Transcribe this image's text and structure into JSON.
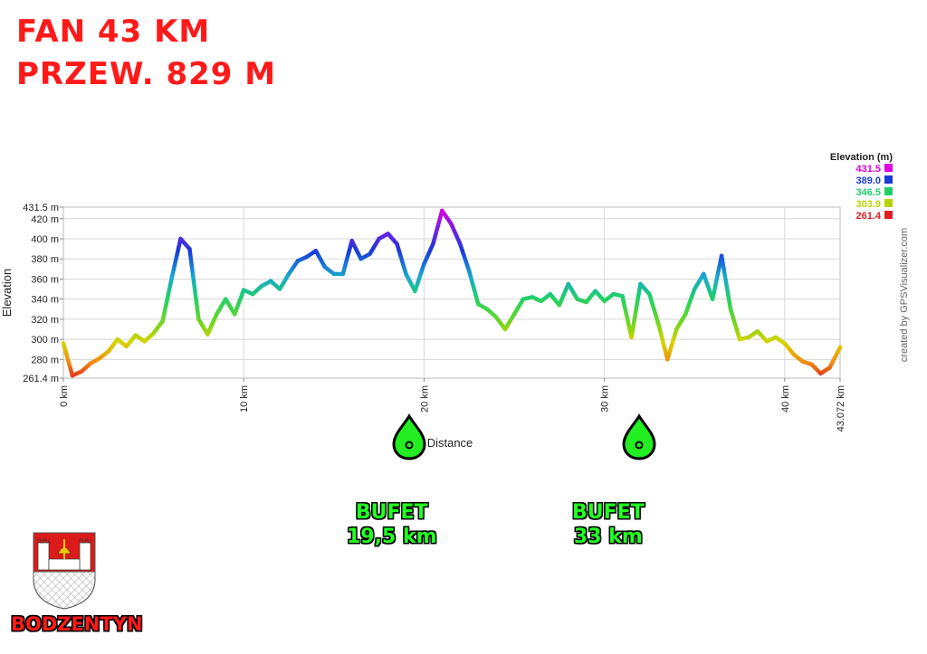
{
  "headline": {
    "line1": "FAN 43 KM",
    "line2": "PRZEW. 829 M"
  },
  "chart_data": {
    "type": "line",
    "ylabel": "Elevation",
    "xlabel": "Distance",
    "xlim": [
      0,
      43.072
    ],
    "ylim": [
      261.4,
      431.5
    ],
    "x_ticks": [
      "0 km",
      "10 km",
      "20 km",
      "30 km",
      "40 km",
      "43.072 km"
    ],
    "y_ticks": [
      "431.5 m",
      "420 m",
      "400 m",
      "380 m",
      "360 m",
      "340 m",
      "320 m",
      "300 m",
      "280 m",
      "261.4 m"
    ],
    "grid": true,
    "credit": "created by GPSVisualizer.com",
    "legend": {
      "title": "Elevation (m)",
      "placement": "top-right",
      "entries": [
        {
          "label": "431.5",
          "color": "#e000e0"
        },
        {
          "label": "389.0",
          "color": "#1a3bd9"
        },
        {
          "label": "346.5",
          "color": "#1fd06a"
        },
        {
          "label": "303.9",
          "color": "#b8d400"
        },
        {
          "label": "261.4",
          "color": "#e02020"
        }
      ]
    },
    "series": [
      {
        "x": [
          0,
          0.5,
          1,
          1.5,
          2,
          2.5,
          3,
          3.5,
          4,
          4.5,
          5,
          5.5,
          6,
          6.5,
          7,
          7.5,
          8,
          8.5,
          9,
          9.5,
          10,
          10.5,
          11,
          11.5,
          12,
          12.5,
          13,
          13.5,
          14,
          14.5,
          15,
          15.5,
          16,
          16.5,
          17,
          17.5,
          18,
          18.5,
          19,
          19.5,
          20,
          20.5,
          21,
          21.5,
          22,
          22.5,
          23,
          23.5,
          24,
          24.5,
          25,
          25.5,
          26,
          26.5,
          27,
          27.5,
          28,
          28.5,
          29,
          29.5,
          30,
          30.5,
          31,
          31.5,
          32,
          32.5,
          33,
          33.5,
          34,
          34.5,
          35,
          35.5,
          36,
          36.5,
          37,
          37.5,
          38,
          38.5,
          39,
          39.5,
          40,
          40.5,
          41,
          41.5,
          42,
          42.5,
          43.072
        ],
        "y": [
          296,
          264,
          268,
          276,
          281,
          288,
          300,
          293,
          304,
          298,
          306,
          318,
          360,
          400,
          390,
          320,
          305,
          325,
          340,
          325,
          349,
          345,
          353,
          358,
          350,
          365,
          378,
          382,
          388,
          372,
          365,
          365,
          398,
          380,
          385,
          400,
          405,
          395,
          365,
          348,
          375,
          395,
          428,
          415,
          395,
          368,
          335,
          330,
          322,
          310,
          325,
          340,
          342,
          338,
          345,
          334,
          355,
          340,
          337,
          348,
          338,
          345,
          343,
          302,
          355,
          345,
          315,
          280,
          310,
          325,
          350,
          365,
          340,
          383,
          330,
          300,
          302,
          308,
          298,
          302,
          296,
          285,
          278,
          275,
          266,
          272,
          292
        ]
      }
    ],
    "markers": [
      {
        "label": "BUFET",
        "sublabel": "19,5 km",
        "x": 19.5
      },
      {
        "label": "BUFET",
        "sublabel": "33 km",
        "x": 33
      }
    ]
  },
  "branding": {
    "town": "BODZENTYN"
  }
}
